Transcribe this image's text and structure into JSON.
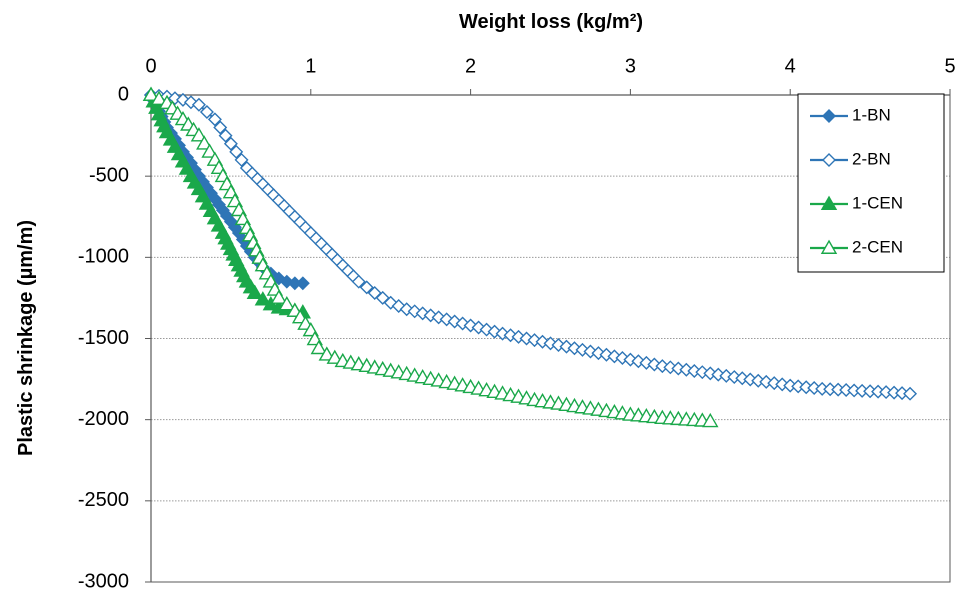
{
  "chart_data": {
    "type": "scatter",
    "title": "",
    "xlabel": "Weight loss (kg/m²)",
    "ylabel": "Plastic shrinkage (µm/m)",
    "xlim": [
      0,
      5
    ],
    "ylim": [
      -3000,
      0
    ],
    "x_ticks": [
      0,
      1,
      2,
      3,
      4,
      5
    ],
    "y_ticks": [
      0,
      -500,
      -1000,
      -1500,
      -2000,
      -2500,
      -3000
    ],
    "x_axis_position": "top",
    "grid": "horizontal",
    "legend_position": "top-right",
    "series": [
      {
        "name": "1-BN",
        "color": "#2E75B6",
        "marker": "diamond",
        "filled": true,
        "points": [
          [
            0,
            0
          ],
          [
            0.05,
            -100
          ],
          [
            0.1,
            -200
          ],
          [
            0.15,
            -270
          ],
          [
            0.2,
            -350
          ],
          [
            0.25,
            -420
          ],
          [
            0.3,
            -500
          ],
          [
            0.35,
            -570
          ],
          [
            0.4,
            -640
          ],
          [
            0.45,
            -710
          ],
          [
            0.5,
            -780
          ],
          [
            0.55,
            -850
          ],
          [
            0.6,
            -930
          ],
          [
            0.65,
            -1000
          ],
          [
            0.7,
            -1060
          ],
          [
            0.75,
            -1100
          ],
          [
            0.8,
            -1130
          ],
          [
            0.85,
            -1150
          ],
          [
            0.9,
            -1160
          ],
          [
            0.95,
            -1160
          ]
        ]
      },
      {
        "name": "2-BN",
        "color": "#2E75B6",
        "marker": "diamond",
        "filled": false,
        "points": [
          [
            0,
            0
          ],
          [
            0.1,
            -10
          ],
          [
            0.2,
            -30
          ],
          [
            0.3,
            -60
          ],
          [
            0.4,
            -150
          ],
          [
            0.5,
            -300
          ],
          [
            0.6,
            -450
          ],
          [
            0.7,
            -550
          ],
          [
            0.8,
            -650
          ],
          [
            0.9,
            -750
          ],
          [
            1.0,
            -850
          ],
          [
            1.1,
            -950
          ],
          [
            1.2,
            -1050
          ],
          [
            1.3,
            -1150
          ],
          [
            1.4,
            -1220
          ],
          [
            1.5,
            -1280
          ],
          [
            1.6,
            -1320
          ],
          [
            1.8,
            -1370
          ],
          [
            2.0,
            -1420
          ],
          [
            2.2,
            -1470
          ],
          [
            2.4,
            -1510
          ],
          [
            2.6,
            -1550
          ],
          [
            2.8,
            -1590
          ],
          [
            3.0,
            -1630
          ],
          [
            3.2,
            -1670
          ],
          [
            3.4,
            -1700
          ],
          [
            3.6,
            -1730
          ],
          [
            3.8,
            -1760
          ],
          [
            4.0,
            -1790
          ],
          [
            4.2,
            -1810
          ],
          [
            4.4,
            -1820
          ],
          [
            4.6,
            -1830
          ],
          [
            4.75,
            -1840
          ]
        ]
      },
      {
        "name": "1-CEN",
        "color": "#1AA84A",
        "marker": "triangle",
        "filled": true,
        "points": [
          [
            0,
            0
          ],
          [
            0.05,
            -120
          ],
          [
            0.1,
            -230
          ],
          [
            0.15,
            -320
          ],
          [
            0.2,
            -410
          ],
          [
            0.25,
            -500
          ],
          [
            0.3,
            -580
          ],
          [
            0.35,
            -670
          ],
          [
            0.4,
            -760
          ],
          [
            0.45,
            -850
          ],
          [
            0.5,
            -950
          ],
          [
            0.55,
            -1050
          ],
          [
            0.6,
            -1150
          ],
          [
            0.65,
            -1220
          ],
          [
            0.7,
            -1260
          ],
          [
            0.75,
            -1290
          ],
          [
            0.8,
            -1310
          ],
          [
            0.85,
            -1320
          ],
          [
            0.9,
            -1330
          ],
          [
            0.95,
            -1340
          ]
        ]
      },
      {
        "name": "2-CEN",
        "color": "#1AA84A",
        "marker": "triangle",
        "filled": false,
        "points": [
          [
            0,
            0
          ],
          [
            0.1,
            -50
          ],
          [
            0.2,
            -150
          ],
          [
            0.3,
            -250
          ],
          [
            0.4,
            -400
          ],
          [
            0.5,
            -600
          ],
          [
            0.6,
            -820
          ],
          [
            0.7,
            -1050
          ],
          [
            0.75,
            -1150
          ],
          [
            0.8,
            -1250
          ],
          [
            0.9,
            -1330
          ],
          [
            1.0,
            -1450
          ],
          [
            1.05,
            -1560
          ],
          [
            1.1,
            -1600
          ],
          [
            1.2,
            -1640
          ],
          [
            1.4,
            -1680
          ],
          [
            1.6,
            -1720
          ],
          [
            1.8,
            -1760
          ],
          [
            2.0,
            -1800
          ],
          [
            2.2,
            -1840
          ],
          [
            2.4,
            -1880
          ],
          [
            2.6,
            -1910
          ],
          [
            2.8,
            -1940
          ],
          [
            3.0,
            -1970
          ],
          [
            3.2,
            -1990
          ],
          [
            3.35,
            -2000
          ],
          [
            3.5,
            -2010
          ]
        ]
      }
    ]
  }
}
